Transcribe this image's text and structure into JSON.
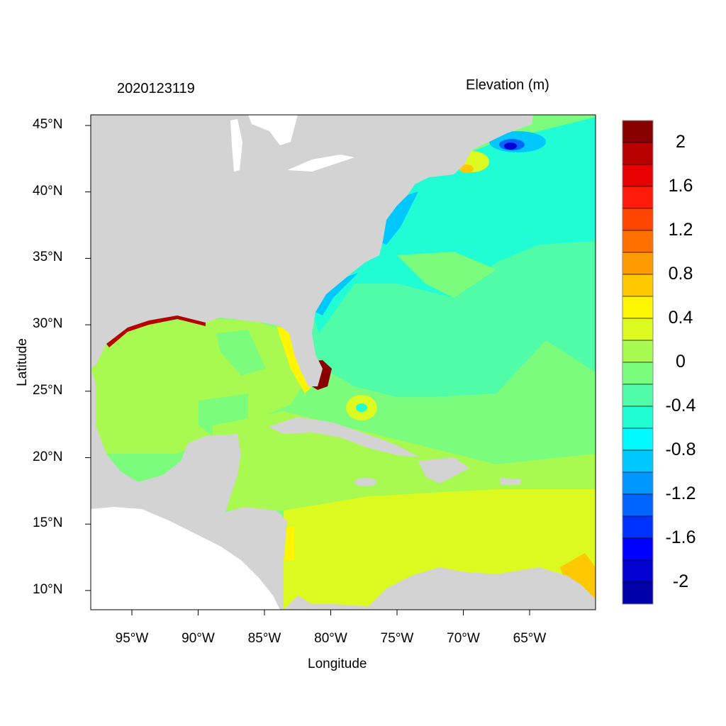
{
  "title_left": "2020123119",
  "title_right": "Elevation (m)",
  "x_axis": {
    "label": "Longitude",
    "ticks": [
      {
        "value": -95,
        "label": "95°W"
      },
      {
        "value": -90,
        "label": "90°W"
      },
      {
        "value": -85,
        "label": "85°W"
      },
      {
        "value": -80,
        "label": "80°W"
      },
      {
        "value": -75,
        "label": "75°W"
      },
      {
        "value": -70,
        "label": "70°W"
      },
      {
        "value": -65,
        "label": "65°W"
      }
    ]
  },
  "y_axis": {
    "label": "Latitude",
    "ticks": [
      {
        "value": 45,
        "label": "45°N"
      },
      {
        "value": 40,
        "label": "40°N"
      },
      {
        "value": 35,
        "label": "35°N"
      },
      {
        "value": 30,
        "label": "30°N"
      },
      {
        "value": 25,
        "label": "25°N"
      },
      {
        "value": 20,
        "label": "20°N"
      },
      {
        "value": 15,
        "label": "15°N"
      },
      {
        "value": 10,
        "label": "10°N"
      }
    ]
  },
  "map_extent": {
    "lon": [
      -98.1,
      -60
    ],
    "lat": [
      8.6,
      45.8
    ]
  },
  "land_color": "#d3d3d3",
  "colorbar": {
    "labels": [
      "2",
      "1.6",
      "1.2",
      "0.8",
      "0.4",
      "0",
      "-0.4",
      "-0.8",
      "-1.2",
      "-1.6",
      "-2"
    ],
    "label_values": [
      2,
      1.6,
      1.2,
      0.8,
      0.4,
      0,
      -0.4,
      -0.8,
      -1.2,
      -1.6,
      -2
    ],
    "level_step": 0.2,
    "colors_top_to_bottom": [
      "#880000",
      "#b80000",
      "#e60000",
      "#ff1a0a",
      "#ff4500",
      "#ff7000",
      "#ff9a00",
      "#ffc800",
      "#fff500",
      "#dcfa20",
      "#a8fa50",
      "#7cfc7c",
      "#50fca8",
      "#20fcd4",
      "#00f8ff",
      "#00c8ff",
      "#0096ff",
      "#0064ff",
      "#0032ff",
      "#0000ff",
      "#0000d0",
      "#0000a8"
    ]
  }
}
